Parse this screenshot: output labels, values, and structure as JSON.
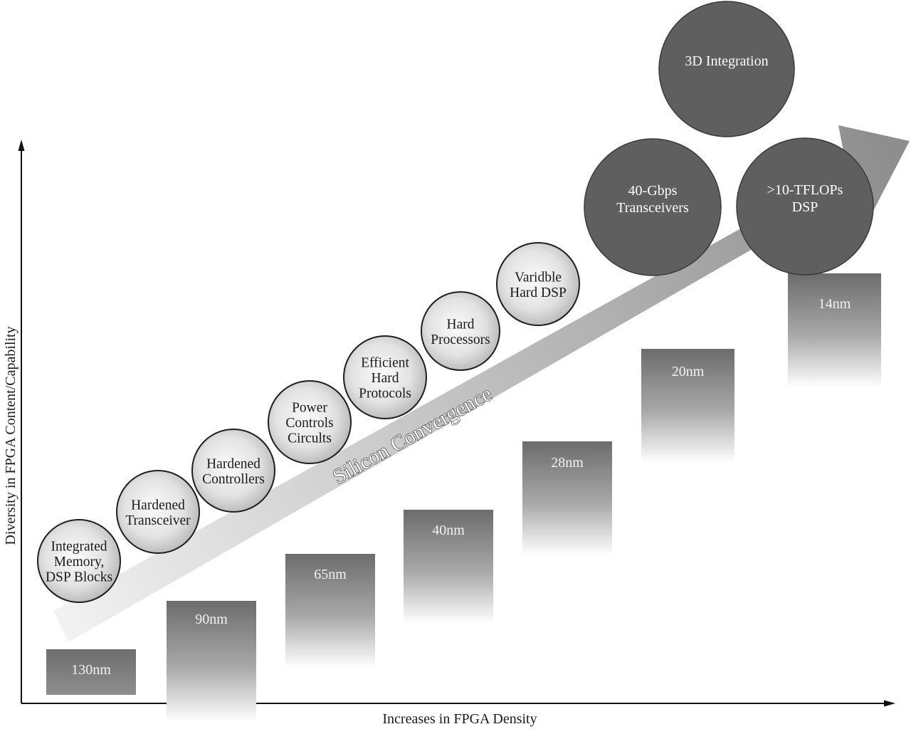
{
  "axes": {
    "x_label": "Increases in FPGA Density",
    "y_label": "Diversity in FPGA Content/Capability"
  },
  "banner": {
    "label": "Silicon Convergence"
  },
  "process_nodes": [
    {
      "label": "130nm"
    },
    {
      "label": "90nm"
    },
    {
      "label": "65nm"
    },
    {
      "label": "40nm"
    },
    {
      "label": "28nm"
    },
    {
      "label": "20nm"
    },
    {
      "label": "14nm"
    }
  ],
  "capabilities": [
    {
      "lines": [
        "Integrated",
        "Memory,",
        "DSP Blocks"
      ]
    },
    {
      "lines": [
        "Hardened",
        "Transceiver"
      ]
    },
    {
      "lines": [
        "Hardened",
        "Controllers"
      ]
    },
    {
      "lines": [
        "Power",
        "Controls",
        "Circults"
      ]
    },
    {
      "lines": [
        "Efficient",
        "Hard",
        "Protocols"
      ]
    },
    {
      "lines": [
        "Hard",
        "Processors"
      ]
    },
    {
      "lines": [
        "Varidble",
        "Hard DSP"
      ]
    }
  ],
  "future_capabilities": [
    {
      "lines": [
        "40-Gbps",
        "Transceivers"
      ]
    },
    {
      "lines": [
        ">10-TFLOPs",
        "DSP"
      ]
    },
    {
      "lines": [
        "3D Integration"
      ]
    }
  ],
  "colors": {
    "block_top": "#6f6f6f",
    "dark_circle": "#5f5f5f",
    "light_circle_center": "#f6f6f6",
    "light_circle_edge": "#b9b9b9",
    "arrow_start": "#f2f2f2",
    "arrow_end": "#8e8e8e"
  }
}
